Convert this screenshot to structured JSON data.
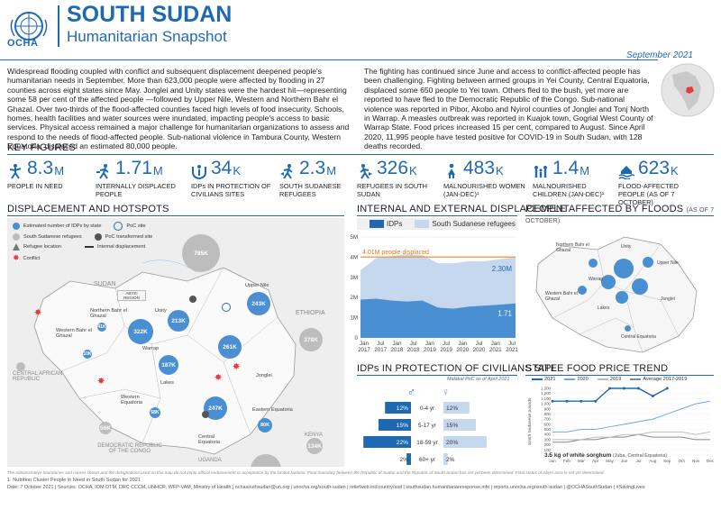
{
  "header": {
    "org": "OCHA",
    "title": "SOUTH SUDAN",
    "subtitle": "Humanitarian Snapshot",
    "date": "September 2021"
  },
  "intro": {
    "left": "Widespread flooding coupled with conflict and subsequent displacement deepened people's humanitarian needs in September. More than 623,000 people were affected by flooding in 27 counties across eight states since May. Jonglei and Unity states were the hardest hit—representing some 58 per cent of the affected people —followed by Upper Nile, Western and Northern Bahr el Ghazal. Over two-thirds of the flood-affected counties faced high levels of food insecurity. Schools, homes, health facilities and water sources were inundated, impacting people's access to basic services. Physical access remained a major challenge for humanitarian organizations to assess and respond to the needs of flood-affected people. Sub-national violence in Tambura County, Western Equatoria, displaced an estimated 80,000 people.",
    "right": "The fighting has continued since June and access to conflict-affected people has been challenging. Fighting between armed groups in Yei County, Central Equatoria, displaced some 650 people to Yei town. Others fled to the bush, yet more are reported to have fled to the Democratic Republic of the Congo. Sub-national violence was reported in Pibor, Akobo and Nyirol counties of Jonglei and Tonj North in Warrap. A measles outbreak was reported in Kuajok town, Gogrial West County of Warrap State. Food prices increased 15 per cent, compared to August. Since April 2020, 11,995 people have tested positive for COVID-19 in South Sudan, with 128 deaths recorded."
  },
  "key_figures": {
    "title": "KEY FIGURES",
    "items": [
      {
        "num": "8.3",
        "unit": "M",
        "label": "PEOPLE IN NEED",
        "icon": "people-in-need-icon"
      },
      {
        "num": "1.71",
        "unit": "M",
        "label": "INTERNALLY DISPLACED PEOPLE",
        "icon": "idp-icon"
      },
      {
        "num": "34",
        "unit": "K",
        "label": "IDPs IN PROTECTION OF CIVILIANS SITES",
        "icon": "poc-icon"
      },
      {
        "num": "2.3",
        "unit": "M",
        "label": "SOUTH SUDANESE REFUGEES",
        "icon": "refugee-icon"
      },
      {
        "num": "326",
        "unit": "K",
        "label": "REFUGEES IN SOUTH SUDAN",
        "icon": "refugees-in-ss-icon"
      },
      {
        "num": "483",
        "unit": "K",
        "label": "MALNOURISHED WOMEN (JAN-DEC)¹",
        "icon": "women-icon"
      },
      {
        "num": "1.4",
        "unit": "M",
        "label": "MALNOURISHED CHILDREN (JAN-DEC)¹",
        "icon": "children-icon"
      },
      {
        "num": "623",
        "unit": "K",
        "label": "FLOOD-AFFECTED PEOPLE (AS OF 7 OCTOBER)",
        "icon": "flood-icon"
      }
    ]
  },
  "map": {
    "title": "DISPLACEMENT AND HOTSPOTS",
    "legend": {
      "idp": "Estimated number of IDPs by state",
      "refugees": "South Sudanese refugees",
      "refugee_loc": "Refugee location",
      "conflict": "Conflict",
      "poc": "PoC site",
      "poc_transformed": "PoC transformed site",
      "internal": "Internal displacement"
    },
    "countries": {
      "sudan": "SUDAN",
      "ethiopia": "ETHIOPIA",
      "car": "CENTRAL AFRICAN REPUBLIC",
      "drc": "DEMOCRATIC REPUBLIC OF THE CONGO",
      "uganda": "UGANDA",
      "kenya": "KENYA",
      "abyei": "ABYEI REGION"
    },
    "states": {
      "upper_nile": "Upper Nile",
      "unity": "Unity",
      "nbeg": "Northern Bahr el Ghazal",
      "wbeg": "Western Bahr el Ghazal",
      "warrap": "Warrap",
      "jonglei": "Jonglei",
      "lakes": "Lakes",
      "weq": "Western Equatoria",
      "ceq": "Central Equatoria",
      "eeq": "Eastern Equatoria"
    },
    "bubbles": {
      "sudan": "785K",
      "ethiopia": "378K",
      "car": "",
      "drc": "56K",
      "uganda": "925K",
      "kenya": "134K",
      "upper_nile": "243K",
      "unity": "213K",
      "warrap": "322K",
      "nbeg": "",
      "wbeg": "10K",
      "jonglei": "261K",
      "lakes": "187K",
      "weq": "58K",
      "ceq": "247K",
      "eeq": "80K",
      "nbeg_sm": "41K"
    }
  },
  "idp_chart": {
    "title": "INTERNAL AND EXTERNAL DISPLACEMENT",
    "legend_idp": "IDPs",
    "legend_ref": "South Sudanese refugees",
    "annot_idp": "4.01M people displaced",
    "annot_ref": "2.30M",
    "annot_last": "1.71",
    "yticks": [
      "0",
      "1M",
      "2M",
      "3M",
      "4M",
      "5M"
    ],
    "xticks": [
      [
        "Jan",
        "2017"
      ],
      [
        "Jul",
        "2017"
      ],
      [
        "Jan",
        "2018"
      ],
      [
        "Jul",
        "2018"
      ],
      [
        "Jan",
        "2019"
      ],
      [
        "Jul",
        "2019"
      ],
      [
        "Jan",
        "2020"
      ],
      [
        "Jul",
        "2020"
      ],
      [
        "Jan",
        "2021"
      ],
      [
        "Jul",
        "2021"
      ]
    ]
  },
  "chart_data": [
    {
      "type": "area",
      "title": "INTERNAL AND EXTERNAL DISPLACEMENT",
      "x": [
        "Jan 2017",
        "Jul 2017",
        "Jan 2018",
        "Jul 2018",
        "Jan 2019",
        "Jul 2019",
        "Jan 2020",
        "Jul 2020",
        "Jan 2021",
        "Jul 2021",
        "Sep 2021"
      ],
      "series": [
        {
          "name": "IDPs",
          "values": [
            1.9,
            1.95,
            1.85,
            1.8,
            1.85,
            1.5,
            1.45,
            1.55,
            1.6,
            1.65,
            1.71
          ]
        },
        {
          "name": "South Sudanese refugees",
          "values": [
            1.45,
            2.0,
            2.2,
            2.35,
            2.25,
            2.2,
            2.25,
            2.25,
            2.2,
            2.25,
            2.3
          ]
        }
      ],
      "ylim": [
        0,
        5
      ]
    },
    {
      "type": "line",
      "title": "STAPLE FOOD PRICE TREND",
      "categories": [
        "Jan",
        "Feb",
        "Mar",
        "Apr",
        "May",
        "Jun",
        "Jul",
        "Aug",
        "Sep",
        "Oct",
        "Nov",
        "Dec"
      ],
      "series": [
        {
          "name": "2021",
          "values": [
            1050,
            1050,
            1050,
            1050,
            1300,
            1300,
            1300,
            1150,
            1300,
            null,
            null,
            null
          ]
        },
        {
          "name": "2020",
          "values": [
            450,
            450,
            500,
            500,
            550,
            600,
            650,
            700,
            800,
            900,
            1000,
            1050
          ]
        },
        {
          "name": "2019",
          "values": [
            300,
            300,
            300,
            350,
            350,
            400,
            400,
            450,
            450,
            450,
            400,
            450
          ]
        },
        {
          "name": "Average 2017-2019",
          "values": [
            250,
            250,
            300,
            300,
            350,
            350,
            400,
            350,
            350,
            350,
            300,
            300
          ]
        }
      ],
      "ylabel": "South Sudanese pounds",
      "ylim": [
        0,
        1300
      ],
      "yticks": [
        0,
        100,
        200,
        300,
        400,
        500,
        600,
        700,
        800,
        900,
        1000,
        1100,
        1200,
        1300
      ]
    },
    {
      "type": "bar",
      "title": "IDPs IN PROTECTION OF CIVILIANS SITE",
      "categories": [
        "0-4 yr",
        "5-17 yr",
        "18-59 yr",
        "60+ yr"
      ],
      "series": [
        {
          "name": "male",
          "values": [
            12,
            15,
            22,
            2
          ]
        },
        {
          "name": "female",
          "values": [
            12,
            15,
            20,
            2
          ]
        }
      ]
    }
  ],
  "poc": {
    "title": "IDPs IN PROTECTION OF CIVILIANS SITE",
    "note": "Malakal PoC as of April 2021",
    "rows": [
      {
        "age": "0-4 yr",
        "m": "12%",
        "f": "12%"
      },
      {
        "age": "5-17 yr",
        "m": "15%",
        "f": "15%"
      },
      {
        "age": "18-59 yr",
        "m": "22%",
        "f": "20%"
      },
      {
        "age": "60+ yr",
        "m": "2%",
        "f": "2%"
      }
    ]
  },
  "floods": {
    "title": "PEOPLE AFFECTED BY FLOODS",
    "title_note": "(AS OF 7 OCTOBER)",
    "labels": {
      "nbeg": "Northern Bahr el Ghazal",
      "unity": "Unity",
      "upper_nile": "Upper Nile",
      "warrap": "Warrap",
      "wbeg": "Western Bahr el Ghazal",
      "jonglei": "Jonglei",
      "lakes": "Lakes",
      "ceq": "Central Equatoria"
    }
  },
  "price": {
    "title": "STAPLE FOOD PRICE TREND",
    "legend": [
      "2021",
      "2020",
      "2019",
      "Average 2017-2019"
    ],
    "ylabel": "South Sudanese pounds",
    "caption_bold": "3.5 kg of white sorghum",
    "caption_rest": " (Juba, Central Equatoria)"
  },
  "footer": {
    "disclaimer": "The administrative boundaries and names shown and the designations used on this map do not imply official endorsement or acceptance by the United Nations. Final boundary between the Republic of Sudan and the Republic of South Sudan has not yet been determined. Final status of Abyei area is not yet determined.",
    "note": "1. Nutrition Cluster People in Need in South Sudan for 2021",
    "sources": "Date: 7 October 2021  |  Sources: OCHA, IOM-DTM, DRC CCCM, UNHCR, WFP-VAM, Ministry of Health  |  ochasouthsudan@un.org  |  unocha.org/south-sudan  |  reliefweb.int/country/ssd  |  southsudan.humanitarianresponse.info  |  reports.unocha.org/south-sudan  |  @OCHASouthSudan  |  #SavingLives"
  }
}
